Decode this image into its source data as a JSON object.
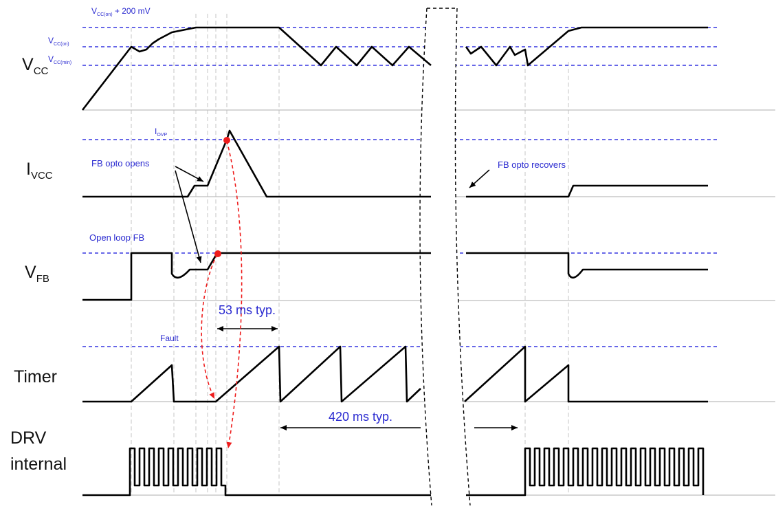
{
  "rows": {
    "vcc": {
      "main": "V",
      "sub": "CC"
    },
    "ivcc": {
      "main": "I",
      "sub": "VCC"
    },
    "vfb": {
      "main": "V",
      "sub": "FB"
    },
    "timer": {
      "main": "Timer"
    },
    "drv": {
      "line1": "DRV",
      "line2": "internal"
    }
  },
  "reference_levels": {
    "vcc_on_plus": {
      "main": "V",
      "sub": "CC(on)",
      "suffix": " + 200 mV"
    },
    "vcc_on": {
      "main": "V",
      "sub": "CC(on)"
    },
    "vcc_min": {
      "main": "V",
      "sub": "CC(min)"
    },
    "iovp": {
      "main": "I",
      "sub": "OVP"
    },
    "open_loop_fb": "Open loop FB",
    "fault": "Fault"
  },
  "annotations": {
    "fb_opto_opens": "FB opto opens",
    "fb_opto_recovers": "FB opto recovers",
    "t53": "53 ms typ.",
    "t420": "420 ms typ."
  },
  "colors": {
    "trace": "#000000",
    "reference": "#3535e0",
    "annotation": "#2a2ad0",
    "red_arrow": "#ee1c1c"
  }
}
